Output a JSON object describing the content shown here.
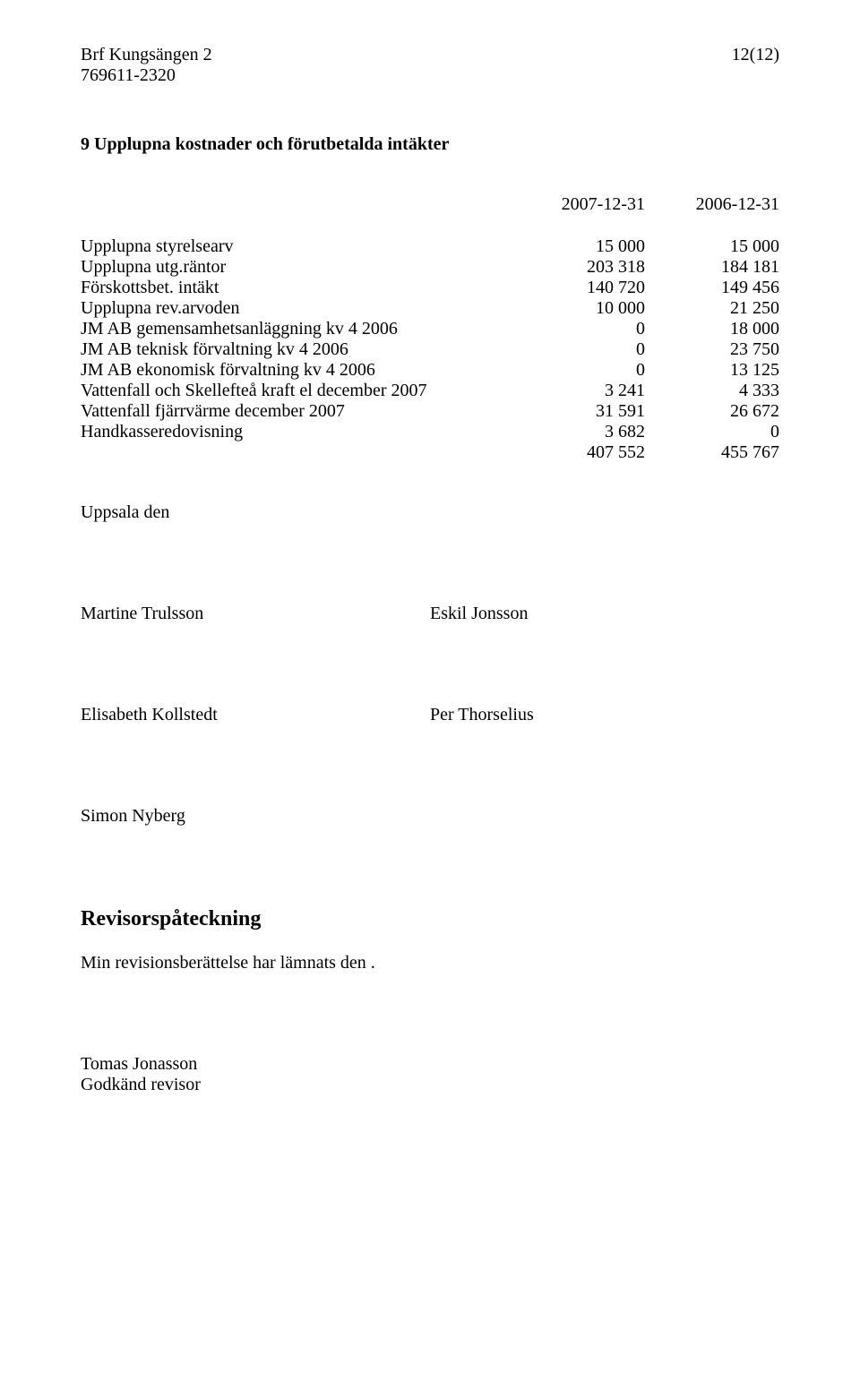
{
  "header": {
    "org_name": "Brf Kungsängen 2",
    "org_number": "769611-2320",
    "page_number": "12(12)"
  },
  "section_title": "9 Upplupna kostnader och förutbetalda intäkter",
  "dates": {
    "col1": "2007-12-31",
    "col2": "2006-12-31"
  },
  "rows": [
    {
      "label": "Upplupna styrelsearv",
      "v1": "15 000",
      "v2": "15 000"
    },
    {
      "label": "Upplupna utg.räntor",
      "v1": "203 318",
      "v2": "184 181"
    },
    {
      "label": "Förskottsbet. intäkt",
      "v1": "140 720",
      "v2": "149 456"
    },
    {
      "label": "Upplupna rev.arvoden",
      "v1": "10 000",
      "v2": "21 250"
    },
    {
      "label": "JM AB gemensamhetsanläggning kv 4 2006",
      "v1": "0",
      "v2": "18 000"
    },
    {
      "label": "JM AB teknisk förvaltning kv 4 2006",
      "v1": "0",
      "v2": "23 750"
    },
    {
      "label": "JM AB ekonomisk förvaltning kv 4 2006",
      "v1": "0",
      "v2": "13 125"
    },
    {
      "label": "Vattenfall och Skellefteå kraft el december 2007",
      "v1": "3 241",
      "v2": "4 333"
    },
    {
      "label": "Vattenfall fjärrvärme december 2007",
      "v1": "31 591",
      "v2": "26 672"
    },
    {
      "label": "Handkasseredovisning",
      "v1": "3 682",
      "v2": "0"
    },
    {
      "label": "",
      "v1": "407 552",
      "v2": "455 767"
    }
  ],
  "uppsala": "Uppsala den",
  "signatures": {
    "row1_left": "Martine Trulsson",
    "row1_right": "Eskil Jonsson",
    "row2_left": "Elisabeth Kollstedt",
    "row2_right": "Per Thorselius",
    "row3_left": "Simon Nyberg"
  },
  "auditor_heading": "Revisorspåteckning",
  "auditor_text": "Min revisionsberättelse har lämnats den .",
  "auditor": {
    "name": "Tomas Jonasson",
    "title": "Godkänd revisor"
  }
}
